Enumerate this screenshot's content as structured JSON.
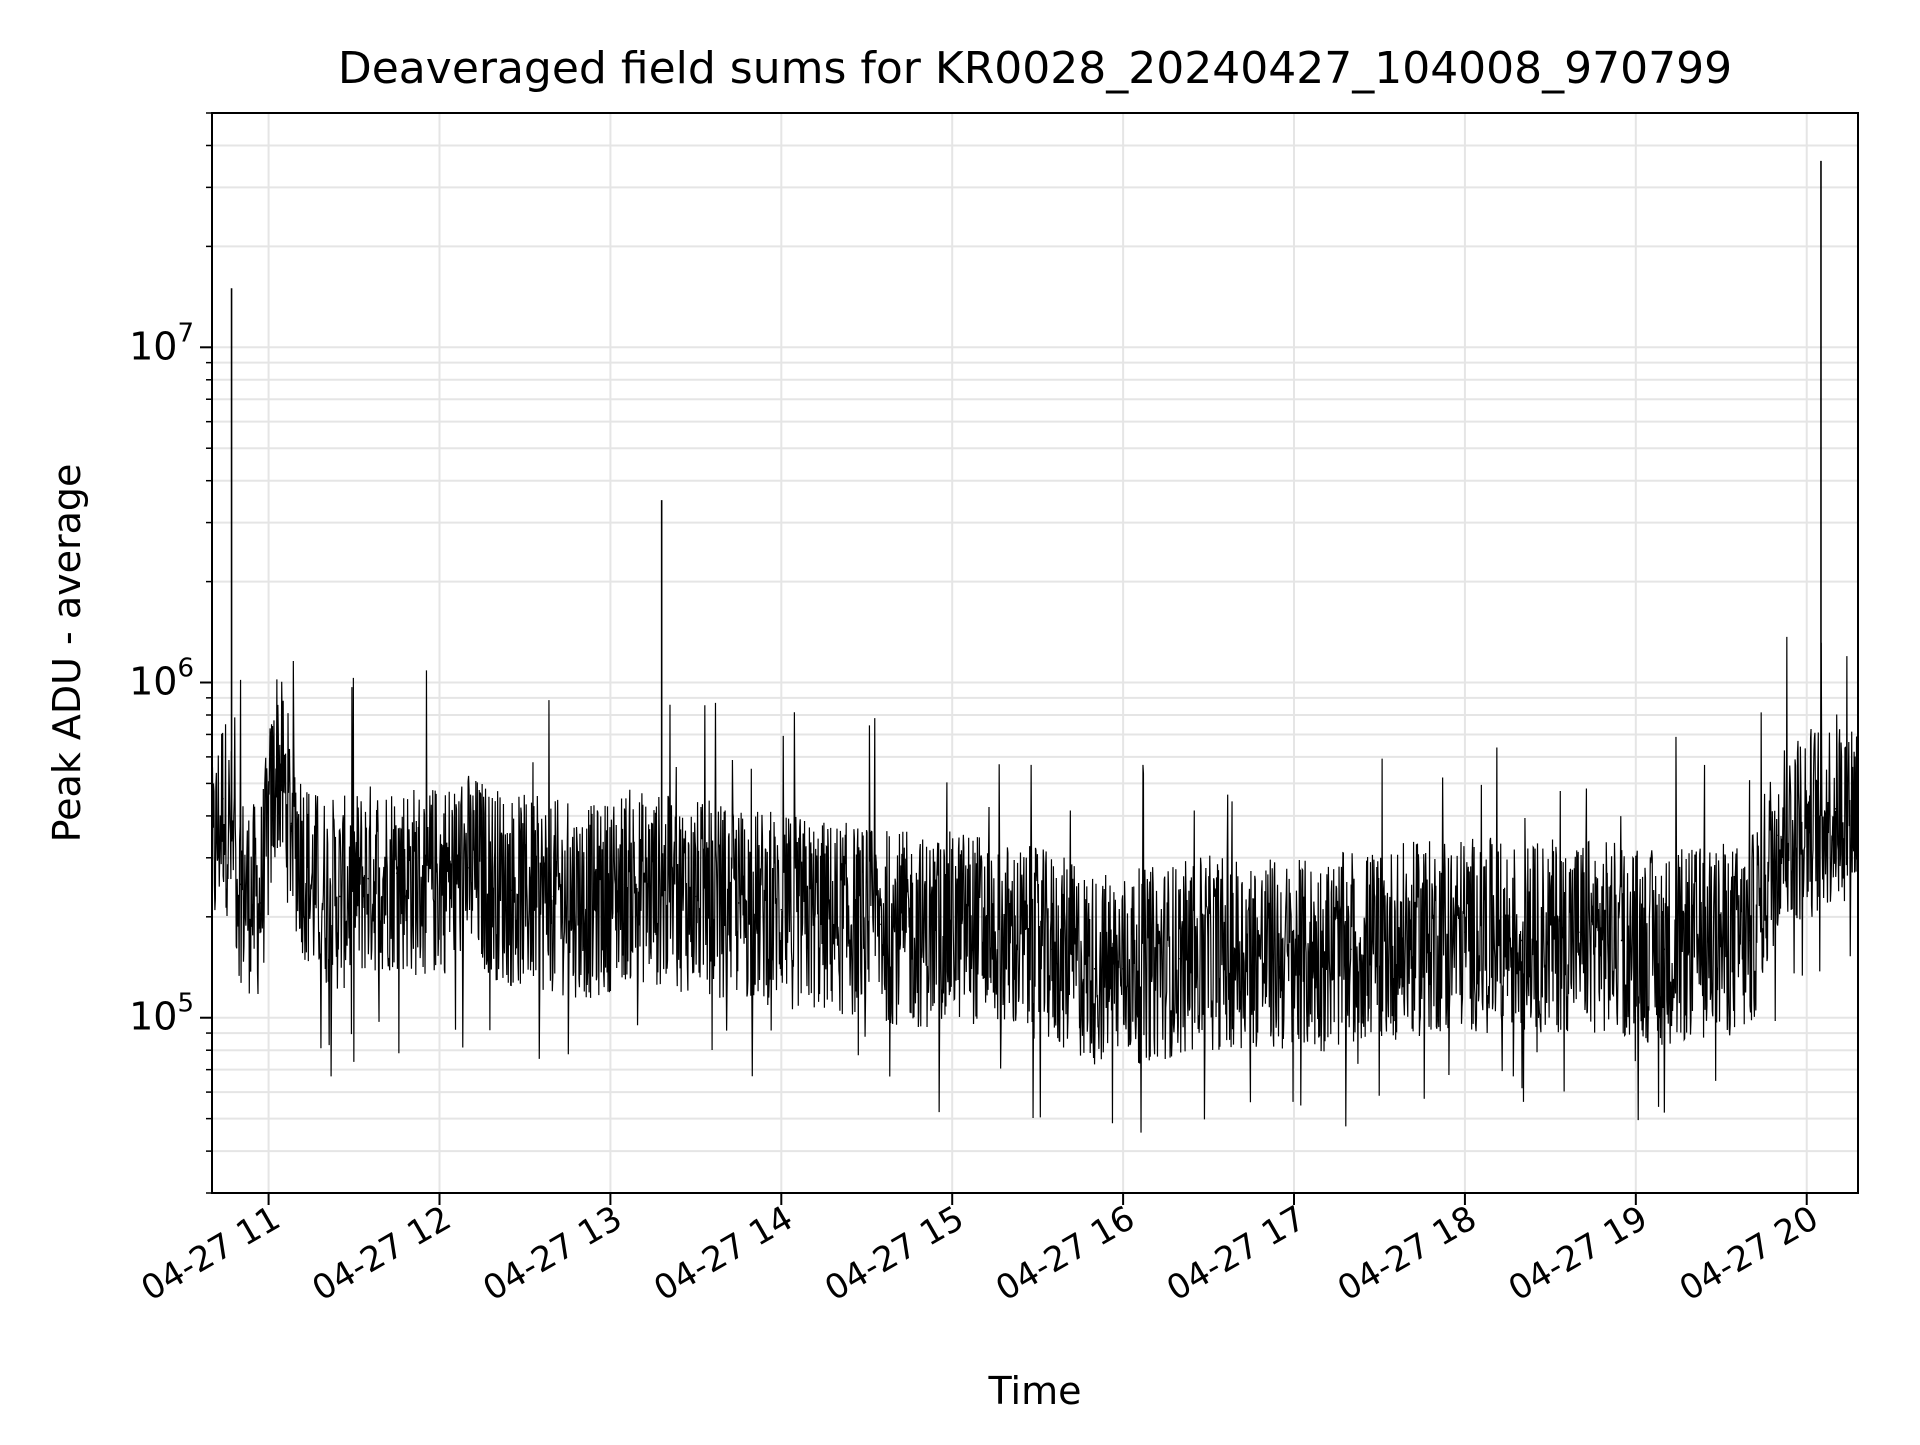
{
  "chart_data": {
    "type": "line",
    "title": "Deaveraged field sums for KR0028_20240427_104008_970799",
    "xlabel": "Time",
    "ylabel": "Peak ADU - average",
    "yscale": "log",
    "ylim": [
      30000,
      50000000
    ],
    "xlim": [
      "2024-04-27 10:40:08",
      "2024-04-27 20:18:00"
    ],
    "grid": true,
    "legend": false,
    "line_color": "#000000",
    "x_ticks": [
      "04-27 11",
      "04-27 12",
      "04-27 13",
      "04-27 14",
      "04-27 15",
      "04-27 16",
      "04-27 17",
      "04-27 18",
      "04-27 19",
      "04-27 20"
    ],
    "y_ticks": [
      {
        "base": "10",
        "exp": "5",
        "value": 100000
      },
      {
        "base": "10",
        "exp": "6",
        "value": 1000000
      },
      {
        "base": "10",
        "exp": "7",
        "value": 10000000
      }
    ],
    "series": [
      {
        "x": [
          "2024-04-27 10:40:08",
          "2024-04-27 10:44:00",
          "2024-04-27 10:47:00",
          "2024-04-27 10:50:00",
          "2024-04-27 10:53:00",
          "2024-04-27 10:57:00",
          "2024-04-27 11:03:00",
          "2024-04-27 11:08:00",
          "2024-04-27 11:15:00",
          "2024-04-27 11:25:00",
          "2024-04-27 11:35:00",
          "2024-04-27 11:45:00",
          "2024-04-27 11:55:00",
          "2024-04-27 12:10:00",
          "2024-04-27 12:25:00",
          "2024-04-27 12:40:00",
          "2024-04-27 12:55:00",
          "2024-04-27 13:05:00",
          "2024-04-27 13:18:00",
          "2024-04-27 13:30:00",
          "2024-04-27 13:45:00",
          "2024-04-27 14:00:00",
          "2024-04-27 14:15:00",
          "2024-04-27 14:35:00",
          "2024-04-27 14:50:00",
          "2024-04-27 15:05:00",
          "2024-04-27 15:22:00",
          "2024-04-27 15:35:00",
          "2024-04-27 15:50:00",
          "2024-04-27 16:00:00",
          "2024-04-27 16:20:00",
          "2024-04-27 16:40:00",
          "2024-04-27 17:00:00",
          "2024-04-27 17:20:00",
          "2024-04-27 17:40:00",
          "2024-04-27 18:00:00",
          "2024-04-27 18:20:00",
          "2024-04-27 18:40:00",
          "2024-04-27 18:55:00",
          "2024-04-27 19:10:00",
          "2024-04-27 19:30:00",
          "2024-04-27 19:40:00",
          "2024-04-27 19:50:00",
          "2024-04-27 20:00:00",
          "2024-04-27 20:05:00",
          "2024-04-27 20:10:00",
          "2024-04-27 20:18:00"
        ],
        "y": [
          280000,
          450000,
          15000000,
          250000,
          230000,
          220000,
          600000,
          380000,
          250000,
          230000,
          260000,
          270000,
          250000,
          280000,
          240000,
          230000,
          220000,
          250000,
          3500000,
          230000,
          220000,
          210000,
          200000,
          190000,
          180000,
          190000,
          170000,
          160000,
          140000,
          140000,
          150000,
          160000,
          150000,
          160000,
          170000,
          180000,
          170000,
          180000,
          170000,
          160000,
          170000,
          170000,
          350000,
          380000,
          36000000,
          420000,
          440000
        ]
      }
    ]
  }
}
